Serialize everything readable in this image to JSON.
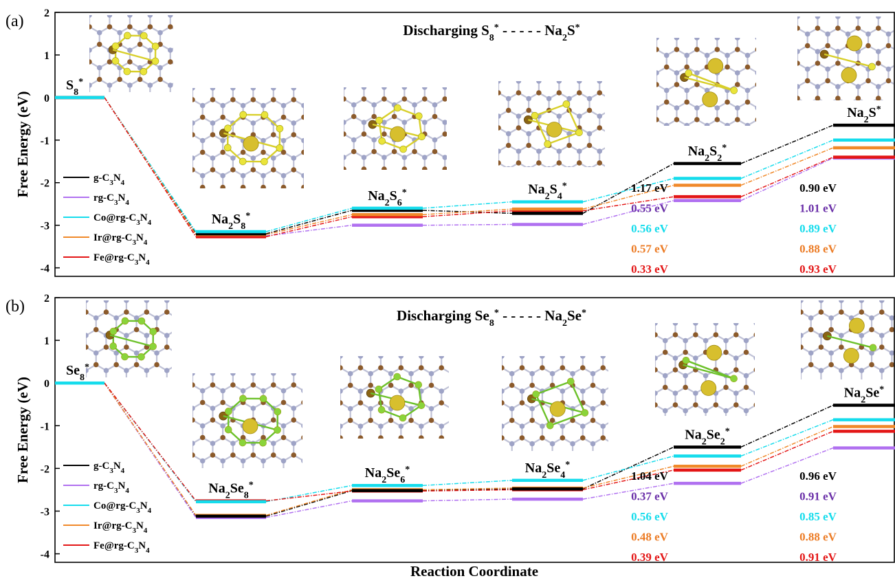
{
  "colors": {
    "g-C3N4": "#000000",
    "rg-C3N4": "#b070f0",
    "Co@rg-C3N4": "#15dcec",
    "Ir@rg-C3N4": "#f0892a",
    "Fe@rg-C3N4": "#e31616",
    "label_rg-C3N4": "#6a2fa8",
    "label_Ir@rg-C3N4": "#ec7c26"
  },
  "icons": [
    "atomic-structure-image"
  ],
  "xlabel": "Reaction Coordinate",
  "chart_data": [
    {
      "type": "line",
      "panel": "(a)",
      "title": "Discharging S8* - - - - - Na2S*",
      "title_parts": [
        "Discharging S",
        "8",
        "*",
        " - - - - - ",
        "Na",
        "2",
        "S",
        "*"
      ],
      "ylabel": "Free Energy (eV)",
      "ylim": [
        -4.2,
        2
      ],
      "yticks": [
        2,
        1,
        0,
        -1,
        -2,
        -3,
        -4
      ],
      "categories": [
        "S8*",
        "Na2S8*",
        "Na2S6*",
        "Na2S4*",
        "Na2S2*",
        "Na2S*"
      ],
      "state_labels": [
        {
          "base": "S",
          "sub": "8",
          "sup": "*"
        },
        {
          "base": "Na",
          "sub": "2",
          "base2": "S",
          "sub2": "8",
          "sup": "*"
        },
        {
          "base": "Na",
          "sub": "2",
          "base2": "S",
          "sub2": "6",
          "sup": "*"
        },
        {
          "base": "Na",
          "sub": "2",
          "base2": "S",
          "sub2": "4",
          "sup": "*"
        },
        {
          "base": "Na",
          "sub": "2",
          "base2": "S",
          "sub2": "2",
          "sup": "*"
        },
        {
          "base": "Na",
          "sub": "2",
          "base2": "S",
          "sub2": "",
          "sup": "*"
        }
      ],
      "series": [
        {
          "name": "g-C3N4",
          "values": [
            0,
            -3.2,
            -2.65,
            -2.72,
            -1.55,
            -0.65
          ]
        },
        {
          "name": "rg-C3N4",
          "values": [
            0,
            -3.25,
            -3.0,
            -2.98,
            -2.42,
            -1.42
          ]
        },
        {
          "name": "Co@rg-C3N4",
          "values": [
            0,
            -3.15,
            -2.6,
            -2.45,
            -1.9,
            -1.0
          ]
        },
        {
          "name": "Ir@rg-C3N4",
          "values": [
            0,
            -3.22,
            -2.75,
            -2.62,
            -2.06,
            -1.18
          ]
        },
        {
          "name": "Fe@rg-C3N4",
          "values": [
            0,
            -3.27,
            -2.8,
            -2.66,
            -2.33,
            -1.4
          ]
        }
      ],
      "barriers": {
        "step_1": [
          "1.17 eV",
          "0.55 eV",
          "0.56 eV",
          "0.57 eV",
          "0.33 eV"
        ],
        "step_2": [
          "0.90 eV",
          "1.01 eV",
          "0.89 eV",
          "0.88 eV",
          "0.93 eV"
        ]
      }
    },
    {
      "type": "line",
      "panel": "(b)",
      "title": "Discharging Se8* - - - - - Na2Se*",
      "title_parts": [
        "Discharging Se",
        "8",
        "*",
        " - - - - - ",
        "Na",
        "2",
        "Se",
        "*"
      ],
      "ylabel": "Free Energy (eV)",
      "ylim": [
        -4.2,
        2
      ],
      "yticks": [
        2,
        1,
        0,
        -1,
        -2,
        -3,
        -4
      ],
      "categories": [
        "Se8*",
        "Na2Se8*",
        "Na2Se6*",
        "Na2Se4*",
        "Na2Se2*",
        "Na2Se*"
      ],
      "state_labels": [
        {
          "base": "Se",
          "sub": "8",
          "sup": "*"
        },
        {
          "base": "Na",
          "sub": "2",
          "base2": "Se",
          "sub2": "8",
          "sup": "*"
        },
        {
          "base": "Na",
          "sub": "2",
          "base2": "Se",
          "sub2": "6",
          "sup": "*"
        },
        {
          "base": "Na",
          "sub": "2",
          "base2": "Se",
          "sub2": "4",
          "sup": "*"
        },
        {
          "base": "Na",
          "sub": "2",
          "base2": "Se",
          "sub2": "2",
          "sup": "*"
        },
        {
          "base": "Na",
          "sub": "2",
          "base2": "Se",
          "sub2": "",
          "sup": "*"
        }
      ],
      "series": [
        {
          "name": "g-C3N4",
          "values": [
            0,
            -3.12,
            -2.52,
            -2.48,
            -1.5,
            -0.52
          ]
        },
        {
          "name": "rg-C3N4",
          "values": [
            0,
            -3.15,
            -2.76,
            -2.72,
            -2.35,
            -1.52
          ]
        },
        {
          "name": "Co@rg-C3N4",
          "values": [
            0,
            -2.78,
            -2.4,
            -2.28,
            -1.71,
            -0.86
          ]
        },
        {
          "name": "Ir@rg-C3N4",
          "values": [
            0,
            -3.1,
            -2.5,
            -2.46,
            -1.95,
            -1.02
          ]
        },
        {
          "name": "Fe@rg-C3N4",
          "values": [
            0,
            -2.76,
            -2.53,
            -2.5,
            -2.04,
            -1.13
          ]
        }
      ],
      "barriers": {
        "step_1": [
          "1.04 eV",
          "0.37 eV",
          "0.56 eV",
          "0.48 eV",
          "0.39 eV"
        ],
        "step_2": [
          "0.96 eV",
          "0.91 eV",
          "0.85 eV",
          "0.88 eV",
          "0.91 eV"
        ]
      }
    }
  ],
  "legend": [
    {
      "name": "g-C3N4",
      "parts": [
        "g-C",
        "3",
        "N",
        "4"
      ]
    },
    {
      "name": "rg-C3N4",
      "parts": [
        "rg-C",
        "3",
        "N",
        "4"
      ]
    },
    {
      "name": "Co@rg-C3N4",
      "parts": [
        "Co@rg-C",
        "3",
        "N",
        "4"
      ]
    },
    {
      "name": "Ir@rg-C3N4",
      "parts": [
        "Ir@rg-C",
        "3",
        "N",
        "4"
      ]
    },
    {
      "name": "Fe@rg-C3N4",
      "parts": [
        "Fe@rg-C",
        "3",
        "N",
        "4"
      ]
    }
  ]
}
